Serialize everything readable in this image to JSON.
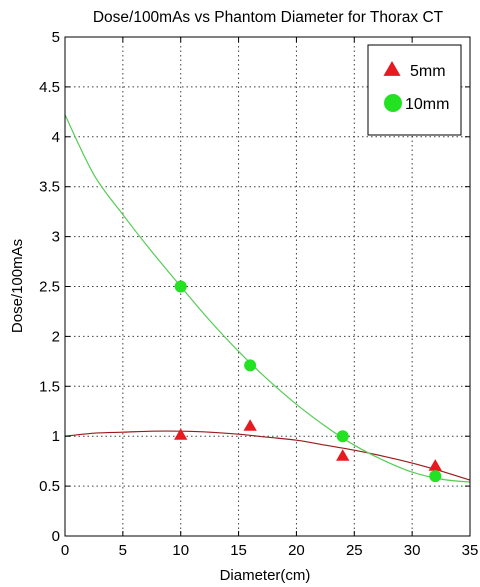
{
  "chart_data": {
    "type": "scatter",
    "title": "Dose/100mAs vs Phantom Diameter for Thorax CT",
    "xlabel": "Diameter(cm)",
    "ylabel": "Dose/100mAs",
    "xlim": [
      0,
      35
    ],
    "ylim": [
      0,
      5
    ],
    "xticks": [
      0,
      5,
      10,
      15,
      20,
      25,
      30,
      35
    ],
    "yticks": [
      0,
      0.5,
      1,
      1.5,
      2,
      2.5,
      3,
      3.5,
      4,
      4.5,
      5
    ],
    "xtick_labels": [
      "0",
      "5",
      "10",
      "15",
      "20",
      "25",
      "30",
      "35"
    ],
    "ytick_labels": [
      "0",
      "0.5",
      "1",
      "1.5",
      "2",
      "2.5",
      "3",
      "3.5",
      "4",
      "4.5",
      "5"
    ],
    "grid": true,
    "legend_position": "top-right",
    "series": [
      {
        "name": "5mm",
        "marker": "triangle",
        "color": "#e8191f",
        "x": [
          10,
          16,
          24,
          32
        ],
        "y": [
          1.01,
          1.1,
          0.8,
          0.7
        ],
        "fit_color": "#9b1c1c",
        "fit_x": [
          0,
          2.5,
          5,
          7.5,
          10,
          12.5,
          15,
          17.5,
          20,
          22.5,
          25,
          27.5,
          30,
          32.5,
          35
        ],
        "fit_y": [
          1.0,
          1.03,
          1.04,
          1.05,
          1.05,
          1.04,
          1.02,
          0.99,
          0.96,
          0.91,
          0.86,
          0.8,
          0.73,
          0.65,
          0.56
        ]
      },
      {
        "name": "10mm",
        "marker": "circle",
        "color": "#22e222",
        "x": [
          10,
          16,
          24,
          32
        ],
        "y": [
          2.5,
          1.71,
          1.0,
          0.6
        ],
        "fit_color": "#55cc55",
        "fit_x": [
          0,
          2.5,
          5,
          7.5,
          10,
          12.5,
          15,
          17.5,
          20,
          22.5,
          25,
          27.5,
          30,
          32.5,
          35
        ],
        "fit_y": [
          4.22,
          3.62,
          3.22,
          2.85,
          2.5,
          2.16,
          1.85,
          1.57,
          1.32,
          1.1,
          0.91,
          0.76,
          0.64,
          0.57,
          0.54
        ]
      }
    ]
  }
}
